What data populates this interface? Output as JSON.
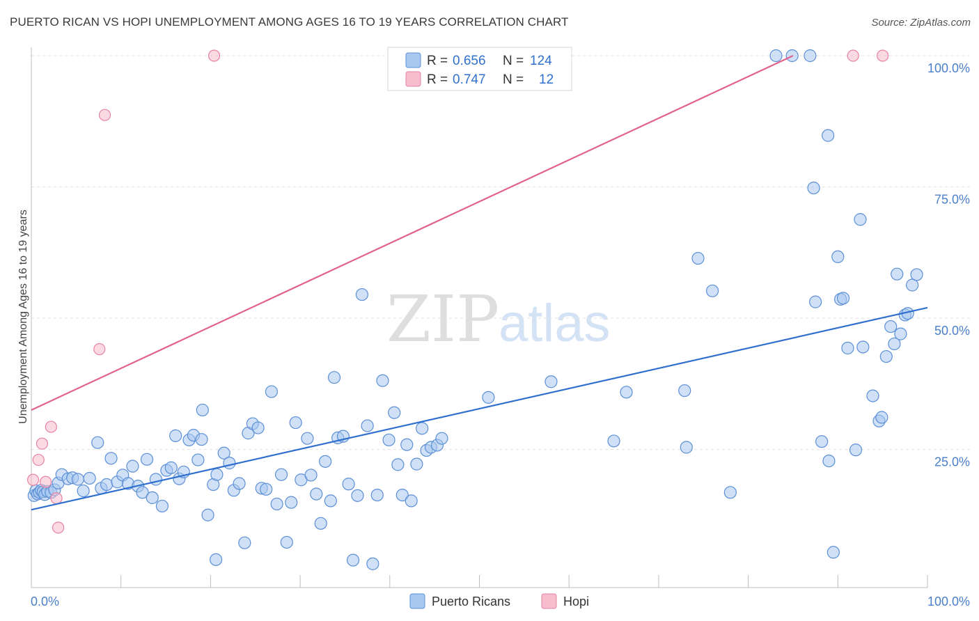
{
  "title": "PUERTO RICAN VS HOPI UNEMPLOYMENT AMONG AGES 16 TO 19 YEARS CORRELATION CHART",
  "source": "Source: ZipAtlas.com",
  "watermark": {
    "zip": "ZIP",
    "atlas": "atlas"
  },
  "colors": {
    "blue_fill": "#a9c8f0",
    "blue_stroke": "#5b8fd6",
    "blue_line": "#2f6fce",
    "pink_fill": "#f7bccd",
    "pink_stroke": "#e583a2",
    "pink_line": "#e0628a"
  },
  "legend": {
    "rows": [
      {
        "r_label": "R =",
        "r_value": "0.656",
        "n_label": "N =",
        "n_value": "124"
      },
      {
        "r_label": "R =",
        "r_value": "0.747",
        "n_label": "N =",
        "n_value": "12"
      }
    ]
  },
  "chart_data": {
    "type": "scatter",
    "ylabel": "Unemployment Among Ages 16 to 19 years",
    "xlim": [
      0,
      100
    ],
    "ylim": [
      0,
      100
    ],
    "x_tick_labels": [
      "0.0%",
      "100.0%"
    ],
    "y_tick_labels": [
      "25.0%",
      "50.0%",
      "75.0%",
      "100.0%"
    ],
    "y_tick_values": [
      25,
      50,
      75,
      100
    ],
    "series": [
      {
        "name": "Puerto Ricans",
        "r": 0.656,
        "n": 124,
        "trend": {
          "x": [
            0,
            100
          ],
          "y": [
            13.5,
            52.0
          ]
        },
        "points": [
          [
            0.3,
            16.2
          ],
          [
            0.5,
            17.1
          ],
          [
            0.7,
            16.5
          ],
          [
            0.9,
            16.8
          ],
          [
            1.1,
            17.2
          ],
          [
            1.3,
            16.9
          ],
          [
            1.5,
            16.4
          ],
          [
            1.8,
            17.0
          ],
          [
            2.2,
            16.8
          ],
          [
            2.6,
            17.3
          ],
          [
            3.0,
            18.6
          ],
          [
            3.4,
            20.2
          ],
          [
            4.1,
            19.4
          ],
          [
            4.6,
            19.6
          ],
          [
            5.2,
            19.3
          ],
          [
            5.8,
            17.1
          ],
          [
            6.5,
            19.5
          ],
          [
            7.4,
            26.3
          ],
          [
            7.8,
            17.6
          ],
          [
            8.4,
            18.3
          ],
          [
            8.9,
            23.3
          ],
          [
            9.6,
            18.8
          ],
          [
            10.2,
            20.1
          ],
          [
            10.8,
            18.5
          ],
          [
            11.3,
            21.8
          ],
          [
            11.9,
            18.0
          ],
          [
            12.4,
            16.8
          ],
          [
            12.9,
            23.1
          ],
          [
            13.5,
            15.8
          ],
          [
            13.9,
            19.3
          ],
          [
            14.6,
            14.2
          ],
          [
            15.1,
            21.0
          ],
          [
            15.6,
            21.5
          ],
          [
            16.1,
            27.6
          ],
          [
            16.5,
            19.4
          ],
          [
            17.0,
            20.7
          ],
          [
            17.6,
            26.8
          ],
          [
            18.1,
            27.7
          ],
          [
            18.6,
            23.0
          ],
          [
            19.1,
            32.5
          ],
          [
            19.0,
            26.9
          ],
          [
            19.7,
            12.5
          ],
          [
            20.3,
            18.3
          ],
          [
            20.7,
            20.2
          ],
          [
            20.6,
            4.0
          ],
          [
            21.5,
            24.3
          ],
          [
            22.1,
            22.4
          ],
          [
            22.6,
            17.2
          ],
          [
            23.2,
            18.5
          ],
          [
            23.8,
            7.2
          ],
          [
            24.2,
            28.1
          ],
          [
            24.7,
            29.9
          ],
          [
            25.3,
            29.1
          ],
          [
            25.7,
            17.6
          ],
          [
            26.2,
            17.4
          ],
          [
            26.8,
            36.0
          ],
          [
            27.4,
            14.6
          ],
          [
            27.9,
            20.2
          ],
          [
            28.5,
            7.3
          ],
          [
            29.0,
            14.9
          ],
          [
            29.5,
            30.1
          ],
          [
            30.1,
            19.2
          ],
          [
            30.8,
            27.1
          ],
          [
            31.2,
            20.1
          ],
          [
            31.8,
            16.5
          ],
          [
            32.3,
            10.9
          ],
          [
            32.8,
            22.7
          ],
          [
            33.4,
            15.2
          ],
          [
            33.8,
            38.7
          ],
          [
            34.2,
            27.2
          ],
          [
            34.8,
            27.5
          ],
          [
            35.4,
            18.4
          ],
          [
            35.9,
            3.9
          ],
          [
            36.4,
            16.2
          ],
          [
            36.9,
            54.5
          ],
          [
            37.5,
            29.5
          ],
          [
            38.1,
            3.2
          ],
          [
            38.6,
            16.3
          ],
          [
            39.2,
            38.1
          ],
          [
            39.9,
            26.8
          ],
          [
            40.5,
            32.0
          ],
          [
            40.9,
            22.1
          ],
          [
            41.4,
            16.3
          ],
          [
            41.9,
            25.9
          ],
          [
            42.4,
            15.2
          ],
          [
            43.0,
            22.2
          ],
          [
            43.6,
            29.0
          ],
          [
            44.1,
            24.8
          ],
          [
            44.6,
            25.4
          ],
          [
            45.3,
            25.8
          ],
          [
            45.8,
            27.1
          ],
          [
            51.0,
            34.9
          ],
          [
            58.0,
            37.9
          ],
          [
            65.0,
            26.6
          ],
          [
            66.4,
            35.9
          ],
          [
            72.9,
            36.2
          ],
          [
            73.1,
            25.4
          ],
          [
            74.4,
            61.4
          ],
          [
            76.0,
            55.2
          ],
          [
            78.0,
            16.8
          ],
          [
            83.1,
            100.0
          ],
          [
            84.9,
            100.0
          ],
          [
            86.9,
            100.0
          ],
          [
            87.3,
            74.8
          ],
          [
            87.5,
            53.1
          ],
          [
            88.2,
            26.5
          ],
          [
            88.9,
            84.8
          ],
          [
            89.0,
            22.8
          ],
          [
            89.5,
            5.4
          ],
          [
            90.0,
            61.7
          ],
          [
            90.3,
            53.6
          ],
          [
            90.6,
            53.8
          ],
          [
            91.1,
            44.3
          ],
          [
            92.0,
            24.9
          ],
          [
            92.5,
            68.8
          ],
          [
            92.8,
            44.5
          ],
          [
            93.9,
            35.2
          ],
          [
            94.6,
            30.4
          ],
          [
            94.9,
            31.1
          ],
          [
            95.4,
            42.7
          ],
          [
            95.9,
            48.4
          ],
          [
            96.3,
            45.1
          ],
          [
            96.6,
            58.4
          ],
          [
            97.0,
            47.0
          ],
          [
            97.5,
            50.6
          ],
          [
            97.8,
            50.9
          ],
          [
            98.3,
            56.3
          ],
          [
            98.8,
            58.3
          ]
        ]
      },
      {
        "name": "Hopi",
        "r": 0.747,
        "n": 12,
        "trend": {
          "x": [
            0,
            85
          ],
          "y": [
            32.5,
            100.0
          ]
        },
        "points": [
          [
            0.2,
            19.2
          ],
          [
            0.8,
            23.0
          ],
          [
            1.2,
            26.1
          ],
          [
            1.6,
            18.8
          ],
          [
            2.2,
            29.3
          ],
          [
            2.8,
            15.7
          ],
          [
            3.0,
            10.1
          ],
          [
            7.6,
            44.1
          ],
          [
            8.2,
            88.7
          ],
          [
            20.4,
            100.0
          ],
          [
            91.7,
            100.0
          ],
          [
            95.0,
            100.0
          ]
        ]
      }
    ]
  },
  "bottom_legend": {
    "items": [
      "Puerto Ricans",
      "Hopi"
    ]
  }
}
